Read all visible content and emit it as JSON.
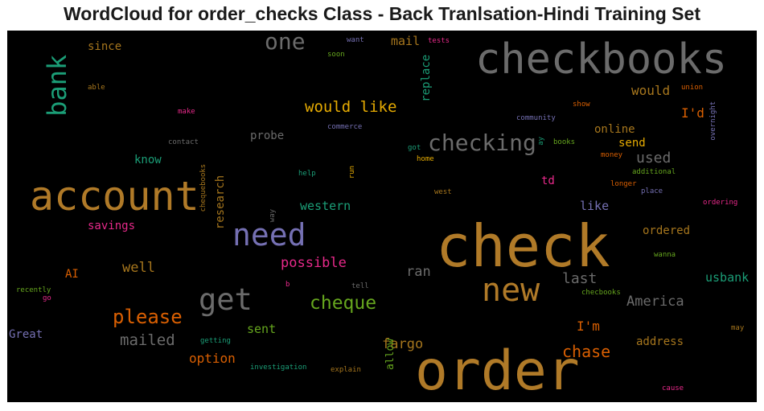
{
  "title": "WordCloud for order_checks Class - Back Tranlsation-Hindi Training Set",
  "colors": {
    "background": "#000000"
  },
  "words": [
    {
      "text": "checkbooks",
      "color": "#6b6b6b"
    },
    {
      "text": "check",
      "color": "#b07a28"
    },
    {
      "text": "order",
      "color": "#b07a28"
    },
    {
      "text": "account",
      "color": "#b07a28"
    },
    {
      "text": "need",
      "color": "#7570b3"
    },
    {
      "text": "new",
      "color": "#b07a28"
    },
    {
      "text": "get",
      "color": "#6b6b6b"
    },
    {
      "text": "one",
      "color": "#6b6b6b"
    },
    {
      "text": "bank",
      "color": "#1b9e77"
    },
    {
      "text": "checking",
      "color": "#6b6b6b"
    },
    {
      "text": "would like",
      "color": "#e6ab02"
    },
    {
      "text": "please",
      "color": "#d95f02"
    },
    {
      "text": "cheque",
      "color": "#66a61e"
    },
    {
      "text": "mailed",
      "color": "#6b6b6b"
    },
    {
      "text": "chase",
      "color": "#d95f02"
    },
    {
      "text": "last",
      "color": "#6b6b6b"
    },
    {
      "text": "America",
      "color": "#6b6b6b"
    },
    {
      "text": "usbank",
      "color": "#1b9e77"
    },
    {
      "text": "possible",
      "color": "#e7298a"
    },
    {
      "text": "western",
      "color": "#1b9e77"
    },
    {
      "text": "well",
      "color": "#a6761d"
    },
    {
      "text": "option",
      "color": "#d95f02"
    },
    {
      "text": "fargo",
      "color": "#a6761d"
    },
    {
      "text": "sent",
      "color": "#66a61e"
    },
    {
      "text": "I'm",
      "color": "#d95f02"
    },
    {
      "text": "ran",
      "color": "#6b6b6b"
    },
    {
      "text": "used",
      "color": "#6b6b6b"
    },
    {
      "text": "would",
      "color": "#a6761d"
    },
    {
      "text": "I'd",
      "color": "#d95f02"
    },
    {
      "text": "online",
      "color": "#a6761d"
    },
    {
      "text": "send",
      "color": "#e6ab02"
    },
    {
      "text": "like",
      "color": "#7570b3"
    },
    {
      "text": "ordered",
      "color": "#a6761d"
    },
    {
      "text": "address",
      "color": "#a6761d"
    },
    {
      "text": "mail",
      "color": "#a6761d"
    },
    {
      "text": "replace",
      "color": "#1b9e77"
    },
    {
      "text": "since",
      "color": "#a6761d"
    },
    {
      "text": "probe",
      "color": "#6b6b6b"
    },
    {
      "text": "know",
      "color": "#1b9e77"
    },
    {
      "text": "savings",
      "color": "#e7298a"
    },
    {
      "text": "research",
      "color": "#a6761d"
    },
    {
      "text": "td",
      "color": "#e7298a"
    },
    {
      "text": "AI",
      "color": "#d95f02"
    },
    {
      "text": "Great",
      "color": "#7570b3"
    },
    {
      "text": "allow",
      "color": "#66a61e"
    },
    {
      "text": "want",
      "color": "#7570b3"
    },
    {
      "text": "tests",
      "color": "#e7298a"
    },
    {
      "text": "soon",
      "color": "#66a61e"
    },
    {
      "text": "able",
      "color": "#a6761d"
    },
    {
      "text": "make",
      "color": "#e7298a"
    },
    {
      "text": "contact",
      "color": "#6b6b6b"
    },
    {
      "text": "chequebooks",
      "color": "#a6761d"
    },
    {
      "text": "commerce",
      "color": "#7570b3"
    },
    {
      "text": "community",
      "color": "#7570b3"
    },
    {
      "text": "show",
      "color": "#d95f02"
    },
    {
      "text": "union",
      "color": "#d95f02"
    },
    {
      "text": "overnight",
      "color": "#7570b3"
    },
    {
      "text": "got",
      "color": "#1b9e77"
    },
    {
      "text": "ay",
      "color": "#1b9e77"
    },
    {
      "text": "books",
      "color": "#66a61e"
    },
    {
      "text": "home",
      "color": "#e6ab02"
    },
    {
      "text": "money",
      "color": "#d95f02"
    },
    {
      "text": "additional",
      "color": "#66a61e"
    },
    {
      "text": "help",
      "color": "#1b9e77"
    },
    {
      "text": "run",
      "color": "#e6ab02"
    },
    {
      "text": "longer",
      "color": "#d95f02"
    },
    {
      "text": "place",
      "color": "#7570b3"
    },
    {
      "text": "west",
      "color": "#a6761d"
    },
    {
      "text": "ordering",
      "color": "#e7298a"
    },
    {
      "text": "way",
      "color": "#6b6b6b"
    },
    {
      "text": "wanna",
      "color": "#66a61e"
    },
    {
      "text": "recently",
      "color": "#66a61e"
    },
    {
      "text": "go",
      "color": "#e7298a"
    },
    {
      "text": "b",
      "color": "#e7298a"
    },
    {
      "text": "tell",
      "color": "#6b6b6b"
    },
    {
      "text": "checbooks",
      "color": "#66a61e"
    },
    {
      "text": "getting",
      "color": "#1b9e77"
    },
    {
      "text": "investigation",
      "color": "#1b9e77"
    },
    {
      "text": "explain",
      "color": "#a6761d"
    },
    {
      "text": "may",
      "color": "#a6761d"
    },
    {
      "text": "cause",
      "color": "#e7298a"
    }
  ]
}
